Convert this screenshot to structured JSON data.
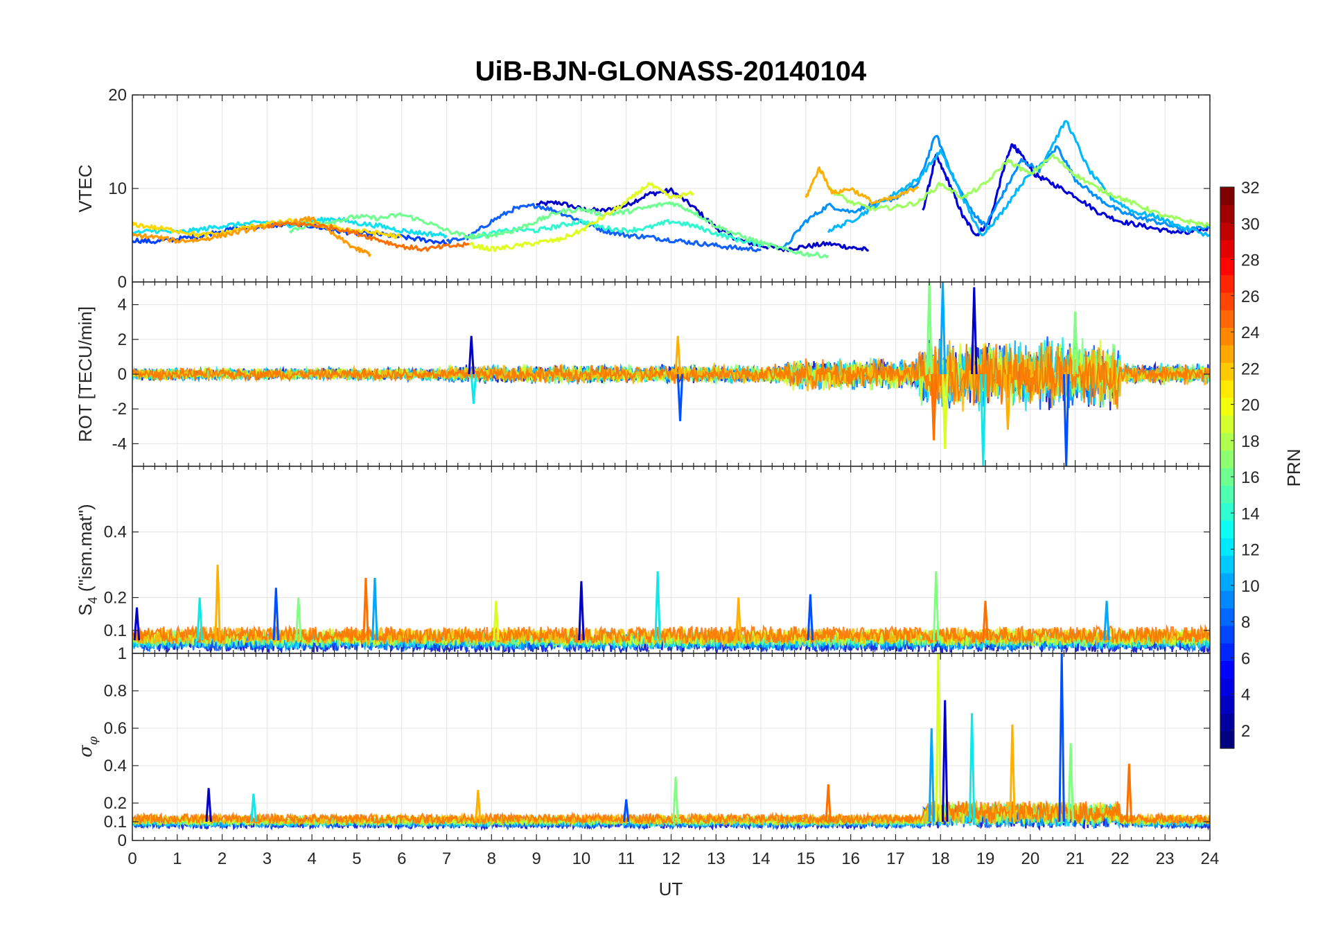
{
  "chart_data": {
    "type": "line",
    "title": "UiB-BJN-GLONASS-20140104",
    "xlabel": "UT",
    "xlim": [
      0,
      24
    ],
    "xticks": [
      0,
      1,
      2,
      3,
      4,
      5,
      6,
      7,
      8,
      9,
      10,
      11,
      12,
      13,
      14,
      15,
      16,
      17,
      18,
      19,
      20,
      21,
      22,
      23,
      24
    ],
    "xtick_labels": [
      "0",
      "1",
      "2",
      "3",
      "4",
      "5",
      "6",
      "7",
      "8",
      "9",
      "10",
      "11",
      "12",
      "13",
      "14",
      "15",
      "16",
      "17",
      "18",
      "19",
      "20",
      "21",
      "22",
      "23",
      "24"
    ],
    "grid": true,
    "panels": [
      {
        "id": "vtec",
        "ylabel": "VTEC",
        "ylim": [
          0,
          20
        ],
        "yticks": [
          0,
          10,
          20
        ],
        "ytick_labels": [
          "0",
          "10",
          "20"
        ],
        "series": [
          {
            "prn": 2,
            "color": "#0000c8",
            "x": [
              9,
              9.5,
              10,
              10.5,
              11,
              11.5,
              12,
              12.5,
              13,
              13.5,
              14,
              14.5,
              15,
              15.5,
              16,
              16.4
            ],
            "y": [
              8.3,
              8.5,
              7.8,
              7.6,
              8.2,
              9.4,
              9.8,
              8,
              5.8,
              4.5,
              3.9,
              3.5,
              3.8,
              4.1,
              3.7,
              3.4
            ]
          },
          {
            "prn": 3,
            "color": "#0000dd",
            "x": [
              17.6,
              17.9,
              18.2,
              18.5,
              18.8,
              19.1,
              19.4,
              19.6,
              19.8,
              20.1,
              20.5,
              21,
              21.5,
              22,
              22.5,
              23,
              23.5,
              24
            ],
            "y": [
              7.5,
              13.5,
              10.5,
              7,
              5,
              6.5,
              12,
              14.8,
              13.5,
              11.5,
              10.5,
              9.2,
              7.5,
              6.5,
              6,
              5.5,
              5.2,
              5.8
            ]
          },
          {
            "prn": 6,
            "color": "#0040ff",
            "x": [
              0,
              0.5,
              1,
              1.5,
              2,
              2.5,
              3,
              3.5,
              4,
              4.5,
              5,
              5.5,
              6,
              6.5,
              7
            ],
            "y": [
              4.5,
              4.3,
              4.6,
              4.9,
              5.5,
              5.8,
              6,
              6.2,
              6,
              5.5,
              5.2,
              5.1,
              4.8,
              4.5,
              4.2
            ]
          },
          {
            "prn": 7,
            "color": "#1060ff",
            "x": [
              7,
              7.5,
              8,
              8.5,
              9,
              9.5,
              10,
              10.5,
              11,
              11.5,
              12,
              12.5,
              13,
              13.5,
              14
            ],
            "y": [
              4.3,
              4.8,
              6.5,
              7.8,
              8.2,
              7.5,
              6.5,
              5.5,
              5,
              4.8,
              4.5,
              4.2,
              3.9,
              3.6,
              3.5
            ]
          },
          {
            "prn": 9,
            "color": "#0090ff",
            "x": [
              14.5,
              15,
              15.5,
              16,
              16.5,
              17,
              17.5,
              17.9,
              18.3,
              18.7,
              19,
              19.4,
              19.8,
              20.2,
              20.6,
              21,
              21.5,
              22,
              22.5,
              23,
              23.5,
              24
            ],
            "y": [
              3.5,
              6.5,
              8.2,
              7.5,
              8.3,
              9,
              10.5,
              15.8,
              11,
              7.5,
              6,
              9.5,
              13,
              12,
              14.5,
              11,
              9,
              7.5,
              6.8,
              6.2,
              5.5,
              6
            ]
          },
          {
            "prn": 11,
            "color": "#00b8ff",
            "x": [
              15.5,
              16,
              16.5,
              17,
              17.5,
              18,
              18.5,
              18.9,
              19.3,
              19.8,
              20.3,
              20.8,
              21.3,
              21.8,
              22.3,
              22.8,
              23.3,
              24
            ],
            "y": [
              5.5,
              6.5,
              8,
              9.5,
              11,
              14,
              9,
              5,
              7,
              10.5,
              13,
              17.3,
              12,
              9,
              7.5,
              7,
              6,
              5
            ]
          },
          {
            "prn": 13,
            "color": "#10e0f0",
            "x": [
              0,
              0.5,
              1,
              1.5,
              2,
              2.5,
              3,
              3.5,
              4,
              4.5,
              5,
              5.5,
              6,
              6.5,
              7
            ],
            "y": [
              5.2,
              5.5,
              5.3,
              5.6,
              6,
              6.2,
              6.4,
              6.1,
              6.5,
              6.8,
              6.3,
              6,
              5.5,
              5.2,
              5
            ]
          },
          {
            "prn": 14,
            "color": "#30f8d0",
            "x": [
              7.5,
              8,
              8.5,
              9,
              9.5,
              10,
              10.5,
              11,
              11.5,
              12,
              12.5,
              13,
              13.5,
              14
            ],
            "y": [
              4.8,
              5.2,
              5.6,
              5.5,
              6,
              6.5,
              5.8,
              5.5,
              5.8,
              6.5,
              6,
              5.2,
              4.5,
              4
            ]
          },
          {
            "prn": 16,
            "color": "#70ff90",
            "x": [
              3.5,
              4,
              4.5,
              5,
              5.5,
              6,
              6.5,
              7,
              7.5,
              8,
              8.5,
              9,
              9.5,
              10,
              10.5,
              11,
              11.5,
              12,
              12.5,
              13,
              13.5,
              14,
              14.5,
              15,
              15.5
            ],
            "y": [
              5.5,
              6.2,
              6.5,
              7,
              6.8,
              7.2,
              6.5,
              5.5,
              4.8,
              5,
              5.5,
              6.5,
              7.5,
              7.8,
              7.2,
              7.5,
              8,
              8.5,
              7.5,
              6,
              5,
              4.2,
              3.5,
              3,
              2.8
            ]
          },
          {
            "prn": 17,
            "color": "#a0ff60",
            "x": [
              15.5,
              16,
              16.5,
              17,
              17.5,
              18,
              18.5,
              19,
              19.5,
              20,
              20.5,
              21,
              21.5,
              22,
              22.5,
              23,
              23.5,
              24
            ],
            "y": [
              10,
              8.5,
              7.8,
              8,
              8.5,
              10.5,
              9,
              10.5,
              13,
              11.5,
              13.5,
              11.5,
              10,
              9,
              8,
              7,
              6.5,
              6
            ]
          },
          {
            "prn": 19,
            "color": "#e0ff20",
            "x": [
              7.5,
              8,
              8.5,
              9,
              9.5,
              10,
              10.5,
              11,
              11.5,
              12,
              12.5
            ],
            "y": [
              4,
              3.5,
              3.8,
              4.2,
              4.5,
              5.5,
              7,
              8.5,
              10.5,
              9,
              9.5
            ]
          },
          {
            "prn": 21,
            "color": "#ffd800",
            "x": [
              0,
              0.5,
              1,
              1.5,
              2,
              2.5,
              3,
              3.5,
              4,
              4.5,
              5,
              5.5,
              6
            ],
            "y": [
              6.2,
              5.8,
              5.5,
              5,
              5.2,
              5.8,
              6.2,
              6.5,
              6.3,
              5.8,
              5.5,
              5.2,
              4.8
            ]
          },
          {
            "prn": 23,
            "color": "#ff9a00",
            "x": [
              0,
              0.5,
              1,
              1.5,
              2,
              2.5,
              3,
              3.5,
              4,
              4.5,
              5,
              5.3
            ],
            "y": [
              5,
              4.8,
              4.4,
              4.5,
              5,
              5.5,
              6,
              6.3,
              6.8,
              5,
              3.5,
              3
            ]
          },
          {
            "prn": 24,
            "color": "#ff7000",
            "x": [
              3,
              3.5,
              4,
              4.5,
              5,
              5.5,
              6,
              6.5,
              7,
              7.5
            ],
            "y": [
              6,
              6.2,
              6.1,
              5.8,
              5.2,
              4.5,
              3.8,
              3.5,
              3.8,
              4
            ]
          },
          {
            "prn": 22,
            "color": "#ffb000",
            "x": [
              15,
              15.3,
              15.6,
              16,
              16.5,
              17,
              17.5
            ],
            "y": [
              9,
              12.2,
              9.5,
              10,
              8.5,
              9,
              10.2
            ]
          }
        ]
      },
      {
        "id": "rot",
        "ylabel": "ROT [TECU/min]",
        "ylim": [
          -5.3,
          5.3
        ],
        "yticks": [
          -4,
          -2,
          0,
          2,
          4
        ],
        "ytick_labels": [
          "-4",
          "-2",
          "0",
          "2",
          "4"
        ],
        "noise_model": {
          "description": "rate of TEC fluctuations around zero, enhanced after 17.5 UT",
          "segments": [
            {
              "x0": 0,
              "x1": 7,
              "amplitude": 0.4
            },
            {
              "x0": 7,
              "x1": 14.5,
              "amplitude": 0.6
            },
            {
              "x0": 14.5,
              "x1": 17.5,
              "amplitude": 1.0
            },
            {
              "x0": 17.5,
              "x1": 22,
              "amplitude": 2.2
            },
            {
              "x0": 22,
              "x1": 24,
              "amplitude": 0.7
            }
          ],
          "peaks": [
            {
              "x": 7.55,
              "y": 2.2
            },
            {
              "x": 7.6,
              "y": -1.7
            },
            {
              "x": 12.15,
              "y": 2.2
            },
            {
              "x": 12.2,
              "y": -2.7
            },
            {
              "x": 17.75,
              "y": 5.3
            },
            {
              "x": 17.85,
              "y": -3.8
            },
            {
              "x": 18.05,
              "y": 5.3
            },
            {
              "x": 18.1,
              "y": -4.3
            },
            {
              "x": 18.75,
              "y": 5.0
            },
            {
              "x": 18.95,
              "y": -5.3
            },
            {
              "x": 19.5,
              "y": -3.2
            },
            {
              "x": 20.8,
              "y": -5.3
            },
            {
              "x": 21.0,
              "y": 3.6
            }
          ]
        }
      },
      {
        "id": "s4",
        "ylabel": "S4 (\"ism.mat\")",
        "ylim": [
          0.03,
          0.6
        ],
        "yticks": [
          0.1,
          0.2,
          0.4
        ],
        "ytick_labels": [
          "0.1",
          "0.2",
          "0.4"
        ],
        "noise_model": {
          "description": "amplitude scintillation index, baseline near 0.05-0.1 with spikes",
          "baseline": 0.07,
          "peaks": [
            {
              "x": 0.1,
              "y": 0.17
            },
            {
              "x": 1.5,
              "y": 0.2
            },
            {
              "x": 1.9,
              "y": 0.3
            },
            {
              "x": 3.2,
              "y": 0.23
            },
            {
              "x": 3.7,
              "y": 0.2
            },
            {
              "x": 5.2,
              "y": 0.26
            },
            {
              "x": 5.4,
              "y": 0.26
            },
            {
              "x": 8.1,
              "y": 0.19
            },
            {
              "x": 10.0,
              "y": 0.25
            },
            {
              "x": 11.7,
              "y": 0.28
            },
            {
              "x": 13.5,
              "y": 0.2
            },
            {
              "x": 15.1,
              "y": 0.21
            },
            {
              "x": 17.9,
              "y": 0.28
            },
            {
              "x": 19.0,
              "y": 0.19
            },
            {
              "x": 21.7,
              "y": 0.19
            }
          ]
        }
      },
      {
        "id": "sigma",
        "ylabel": "σφ",
        "ylim": [
          0,
          1
        ],
        "yticks": [
          0,
          0.1,
          0.2,
          0.4,
          0.6,
          0.8,
          1
        ],
        "ytick_labels": [
          "0",
          "0.1",
          "0.2",
          "0.4",
          "0.6",
          "0.8",
          "1"
        ],
        "noise_model": {
          "description": "phase scintillation index, baseline near 0.08-0.15 with spikes after 17.7 UT",
          "baseline": 0.1,
          "peaks": [
            {
              "x": 1.7,
              "y": 0.28
            },
            {
              "x": 2.7,
              "y": 0.25
            },
            {
              "x": 7.7,
              "y": 0.27
            },
            {
              "x": 11.0,
              "y": 0.22
            },
            {
              "x": 12.1,
              "y": 0.34
            },
            {
              "x": 15.5,
              "y": 0.3
            },
            {
              "x": 17.8,
              "y": 0.6
            },
            {
              "x": 17.95,
              "y": 1.0
            },
            {
              "x": 18.1,
              "y": 0.75
            },
            {
              "x": 18.7,
              "y": 0.68
            },
            {
              "x": 19.6,
              "y": 0.62
            },
            {
              "x": 20.7,
              "y": 1.0
            },
            {
              "x": 20.9,
              "y": 0.52
            },
            {
              "x": 22.2,
              "y": 0.41
            }
          ]
        }
      }
    ],
    "colorbar": {
      "label": "PRN",
      "min": 1,
      "max": 32,
      "ticks": [
        2,
        4,
        6,
        8,
        10,
        12,
        14,
        16,
        18,
        20,
        22,
        24,
        26,
        28,
        30,
        32
      ],
      "tick_labels": [
        "2",
        "4",
        "6",
        "8",
        "10",
        "12",
        "14",
        "16",
        "18",
        "20",
        "22",
        "24",
        "26",
        "28",
        "30",
        "32"
      ],
      "colormap": "jet"
    }
  }
}
